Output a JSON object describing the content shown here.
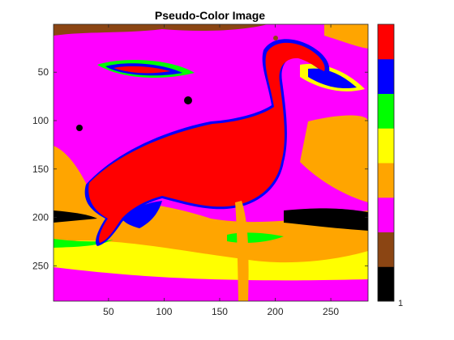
{
  "figure": {
    "title": "Pseudo-Color Image",
    "colorbar_tick_label": "1"
  },
  "chart_data": {
    "type": "heatmap",
    "title": "Pseudo-Color Image",
    "xlabel": "",
    "ylabel": "",
    "xlim": [
      0.5,
      283.5
    ],
    "ylim": [
      0.5,
      286.5
    ],
    "y_direction": "reversed",
    "x_ticks": [
      50,
      100,
      150,
      200,
      250
    ],
    "y_ticks": [
      50,
      100,
      150,
      200,
      250
    ],
    "grid": false,
    "colorbar": {
      "location": "right",
      "tick_labels": [
        "1"
      ],
      "levels": [
        "#000000",
        "#8b4513",
        "#ff00ff",
        "#ffa500",
        "#ffff00",
        "#00ff00",
        "#0000ff",
        "#ff0000"
      ]
    },
    "description_regions": {
      "bird_color": "#ff0000",
      "outline_color": "#0000ff",
      "background_primary": "#ff00ff",
      "background_secondary": "#ffff00"
    }
  }
}
